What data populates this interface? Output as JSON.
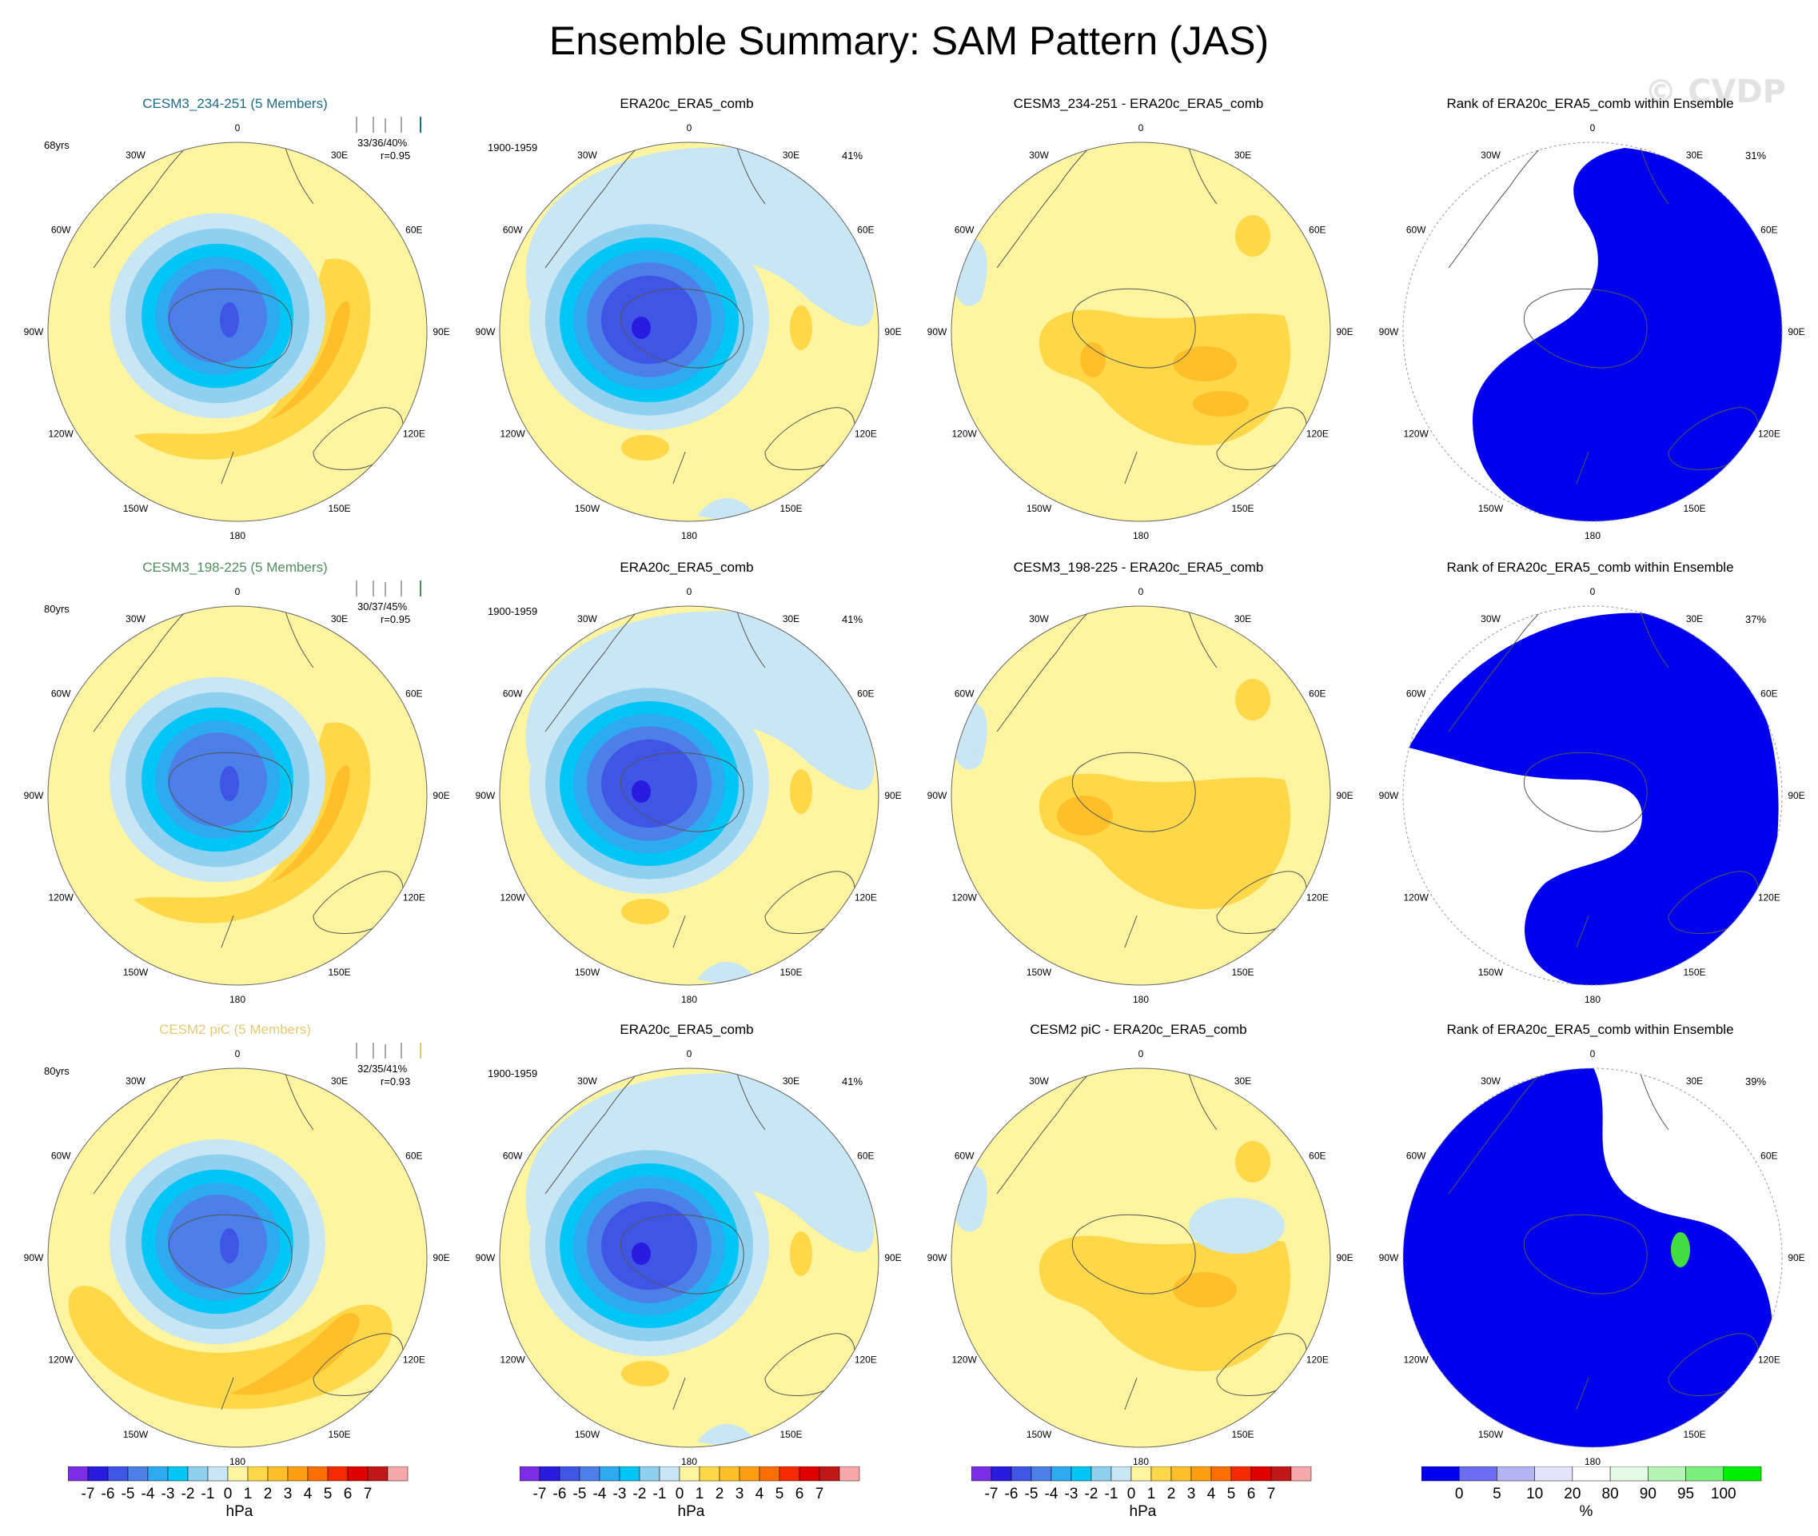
{
  "page": {
    "title": "Ensemble Summary: SAM Pattern (JAS)",
    "watermark": "© CVDP"
  },
  "colors": {
    "ocean_neutral": "#fff5a0",
    "rank_blue": "#0000ee",
    "row_title_colors": [
      "#1b6b8a",
      "#4f8f5f",
      "#e3cb76"
    ]
  },
  "longitude_labels": [
    "0",
    "30E",
    "60E",
    "90E",
    "120E",
    "150E",
    "180",
    "150W",
    "120W",
    "90W",
    "60W",
    "30W"
  ],
  "rows": [
    {
      "model_title": "CESM3_234-251 (5 Members)",
      "years": "68yrs",
      "pct": "33/36/40%",
      "r": "r=0.95",
      "obs_title": "ERA20c_ERA5_comb",
      "obs_period": "1900-1959",
      "obs_pct": "41%",
      "diff_title": "CESM3_234-251 - ERA20c_ERA5_comb",
      "rank_title": "Rank of ERA20c_ERA5_comb within Ensemble",
      "rank_pct": "31%"
    },
    {
      "model_title": "CESM3_198-225 (5 Members)",
      "years": "80yrs",
      "pct": "30/37/45%",
      "r": "r=0.95",
      "obs_title": "ERA20c_ERA5_comb",
      "obs_period": "1900-1959",
      "obs_pct": "41%",
      "diff_title": "CESM3_198-225 - ERA20c_ERA5_comb",
      "rank_title": "Rank of ERA20c_ERA5_comb within Ensemble",
      "rank_pct": "37%"
    },
    {
      "model_title": "CESM2 piC (5 Members)",
      "years": "80yrs",
      "pct": "32/35/41%",
      "r": "r=0.93",
      "obs_title": "ERA20c_ERA5_comb",
      "obs_period": "1900-1959",
      "obs_pct": "41%",
      "diff_title": "CESM2 piC - ERA20c_ERA5_comb",
      "rank_title": "Rank of ERA20c_ERA5_comb within Ensemble",
      "rank_pct": "39%"
    }
  ],
  "colorbars": {
    "hpa": {
      "ticks": [
        "-7",
        "-6",
        "-5",
        "-4",
        "-3",
        "-2",
        "-1",
        "0",
        "1",
        "2",
        "3",
        "4",
        "5",
        "6",
        "7"
      ],
      "colors": [
        "#7b2ee6",
        "#2a1be0",
        "#3f55e6",
        "#4c7fe8",
        "#2eaaf0",
        "#00c6f5",
        "#8fd0f0",
        "#c8e6f4",
        "#fff5a0",
        "#ffd84a",
        "#ffbf2a",
        "#ff9f10",
        "#ff6f00",
        "#f52a00",
        "#e00000",
        "#c01818",
        "#f7a8a8"
      ],
      "unit": "hPa"
    },
    "rank": {
      "ticks": [
        "0",
        "5",
        "10",
        "20",
        "80",
        "90",
        "95",
        "100"
      ],
      "colors": [
        "#0000ee",
        "#6c6cf0",
        "#b4b4f4",
        "#e4e4fa",
        "#ffffff",
        "#e4fae4",
        "#b4f4b4",
        "#7cf07c",
        "#00ee00"
      ],
      "unit": "%"
    }
  },
  "chart_data": {
    "type": "heatmap",
    "description_units": "sea level pressure anomaly (hPa) per 1 std dev of SAM index; rank panels in %",
    "projection": "south polar stereographic",
    "levels_hpa": [
      -7,
      -6,
      -5,
      -4,
      -3,
      -2,
      -1,
      0,
      1,
      2,
      3,
      4,
      5,
      6,
      7
    ],
    "levels_rank_pct": [
      0,
      5,
      10,
      20,
      80,
      90,
      95,
      100
    ],
    "panels": [
      {
        "row": 1,
        "col": "model",
        "center_min_hpa": -5,
        "ridge_max_hpa": 3
      },
      {
        "row": 1,
        "col": "obs",
        "center_min_hpa": -6,
        "ridge_max_hpa": 1
      },
      {
        "row": 1,
        "col": "difference",
        "min_hpa": 0,
        "max_hpa": 2
      },
      {
        "row": 1,
        "col": "rank",
        "dominant_rank_pct": 0
      },
      {
        "row": 2,
        "col": "model",
        "center_min_hpa": -5,
        "ridge_max_hpa": 3
      },
      {
        "row": 2,
        "col": "obs",
        "center_min_hpa": -6,
        "ridge_max_hpa": 1
      },
      {
        "row": 2,
        "col": "difference",
        "min_hpa": -1,
        "max_hpa": 2
      },
      {
        "row": 2,
        "col": "rank",
        "dominant_rank_pct": 0
      },
      {
        "row": 3,
        "col": "model",
        "center_min_hpa": -4,
        "ridge_max_hpa": 3
      },
      {
        "row": 3,
        "col": "obs",
        "center_min_hpa": -6,
        "ridge_max_hpa": 1
      },
      {
        "row": 3,
        "col": "difference",
        "min_hpa": -1,
        "max_hpa": 2
      },
      {
        "row": 3,
        "col": "rank",
        "dominant_rank_pct": 0
      }
    ]
  }
}
